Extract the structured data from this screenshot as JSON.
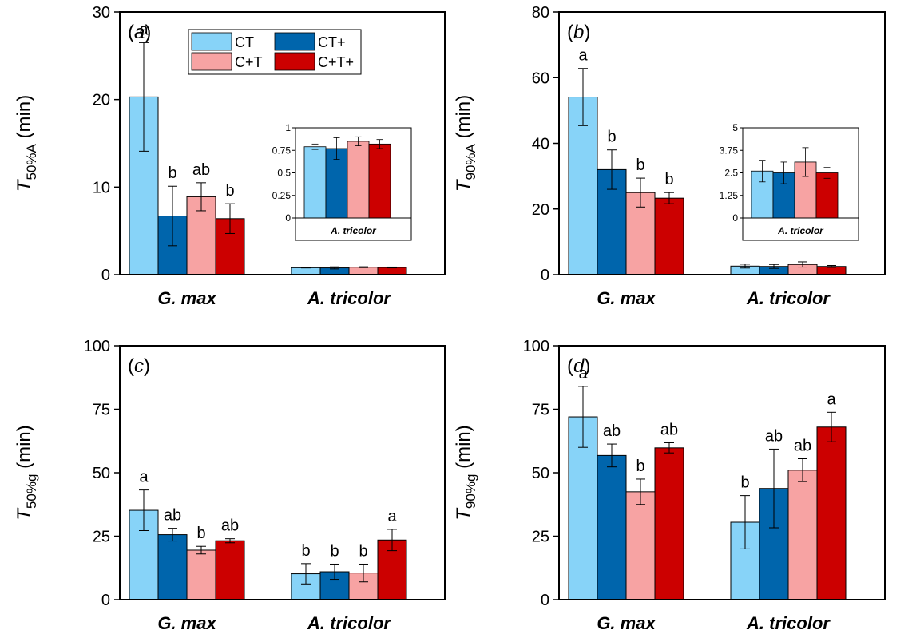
{
  "colors": {
    "CT": "#87d3f8",
    "CT+": "#0065ac",
    "C+T": "#f7a3a3",
    "C+T+": "#cc0000"
  },
  "legend": [
    "CT",
    "CT+",
    "C+T",
    "C+T+"
  ],
  "chart_data": [
    {
      "type": "bar",
      "panel_label": "(a)",
      "panel_letter": "a",
      "ylabel_main": "T",
      "ylabel_sub": "50%A",
      "ylabel_unit": " (min)",
      "ylim": [
        0,
        30
      ],
      "yticks": [
        0,
        10,
        20,
        30
      ],
      "categories": [
        "G. max",
        "A. tricolor"
      ],
      "series": [
        {
          "name": "CT",
          "values": [
            20.3,
            0.79
          ],
          "errors": [
            6.2,
            0.03
          ],
          "letters": [
            "a",
            ""
          ]
        },
        {
          "name": "CT+",
          "values": [
            6.7,
            0.77
          ],
          "errors": [
            3.4,
            0.12
          ],
          "letters": [
            "b",
            ""
          ]
        },
        {
          "name": "C+T",
          "values": [
            8.9,
            0.85
          ],
          "errors": [
            1.6,
            0.05
          ],
          "letters": [
            "ab",
            ""
          ]
        },
        {
          "name": "C+T+",
          "values": [
            6.4,
            0.82
          ],
          "errors": [
            1.7,
            0.05
          ],
          "letters": [
            "b",
            ""
          ]
        }
      ],
      "legend_position": "top-center",
      "inset": {
        "category": "A. tricolor",
        "ylim": [
          0,
          1
        ],
        "ytick_labels": [
          "0",
          "0.25",
          "0.5",
          "0.75",
          "1"
        ],
        "values": [
          0.79,
          0.77,
          0.85,
          0.82
        ],
        "errors": [
          0.03,
          0.12,
          0.05,
          0.05
        ]
      }
    },
    {
      "type": "bar",
      "panel_label": "(b)",
      "panel_letter": "b",
      "ylabel_main": "T",
      "ylabel_sub": "90%A",
      "ylabel_unit": " (min)",
      "ylim": [
        0,
        80
      ],
      "yticks": [
        0,
        20,
        40,
        60,
        80
      ],
      "categories": [
        "G. max",
        "A. tricolor"
      ],
      "series": [
        {
          "name": "CT",
          "values": [
            54.1,
            2.6
          ],
          "errors": [
            8.7,
            0.6
          ],
          "letters": [
            "a",
            ""
          ]
        },
        {
          "name": "CT+",
          "values": [
            32.0,
            2.5
          ],
          "errors": [
            6.0,
            0.6
          ],
          "letters": [
            "b",
            ""
          ]
        },
        {
          "name": "C+T",
          "values": [
            25.0,
            3.1
          ],
          "errors": [
            4.4,
            0.8
          ],
          "letters": [
            "b",
            ""
          ]
        },
        {
          "name": "C+T+",
          "values": [
            23.3,
            2.5
          ],
          "errors": [
            1.7,
            0.3
          ],
          "letters": [
            "b",
            ""
          ]
        }
      ],
      "inset": {
        "category": "A. tricolor",
        "ylim": [
          0,
          5
        ],
        "ytick_labels": [
          "0",
          "1.25",
          "2.5",
          "3.75",
          "5"
        ],
        "values": [
          2.6,
          2.5,
          3.1,
          2.5
        ],
        "errors": [
          0.6,
          0.6,
          0.8,
          0.3
        ]
      }
    },
    {
      "type": "bar",
      "panel_label": "(c)",
      "panel_letter": "c",
      "ylabel_main": "T",
      "ylabel_sub": "50%g",
      "ylabel_unit": " (min)",
      "ylim": [
        0,
        100
      ],
      "yticks": [
        0,
        25,
        50,
        75,
        100
      ],
      "categories": [
        "G. max",
        "A. tricolor"
      ],
      "series": [
        {
          "name": "CT",
          "values": [
            35.2,
            10.2
          ],
          "errors": [
            8.0,
            4.0
          ],
          "letters": [
            "a",
            "b"
          ]
        },
        {
          "name": "CT+",
          "values": [
            25.6,
            11.0
          ],
          "errors": [
            2.5,
            3.0
          ],
          "letters": [
            "ab",
            "b"
          ]
        },
        {
          "name": "C+T",
          "values": [
            19.5,
            10.5
          ],
          "errors": [
            1.5,
            3.5
          ],
          "letters": [
            "b",
            "b"
          ]
        },
        {
          "name": "C+T+",
          "values": [
            23.2,
            23.5
          ],
          "errors": [
            0.8,
            4.2
          ],
          "letters": [
            "ab",
            "a"
          ]
        }
      ]
    },
    {
      "type": "bar",
      "panel_label": "(d)",
      "panel_letter": "d",
      "ylabel_main": "T",
      "ylabel_sub": "90%g",
      "ylabel_unit": " (min)",
      "ylim": [
        0,
        100
      ],
      "yticks": [
        0,
        25,
        50,
        75,
        100
      ],
      "categories": [
        "G. max",
        "A. tricolor"
      ],
      "series": [
        {
          "name": "CT",
          "values": [
            72.0,
            30.5
          ],
          "errors": [
            12.0,
            10.5
          ],
          "letters": [
            "a",
            "b"
          ]
        },
        {
          "name": "CT+",
          "values": [
            56.8,
            43.8
          ],
          "errors": [
            4.5,
            15.5
          ],
          "letters": [
            "ab",
            "ab"
          ]
        },
        {
          "name": "C+T",
          "values": [
            42.5,
            51.0
          ],
          "errors": [
            5.0,
            4.5
          ],
          "letters": [
            "b",
            "ab"
          ]
        },
        {
          "name": "C+T+",
          "values": [
            59.8,
            68.0
          ],
          "errors": [
            2.0,
            5.8
          ],
          "letters": [
            "ab",
            "a"
          ]
        }
      ]
    }
  ]
}
